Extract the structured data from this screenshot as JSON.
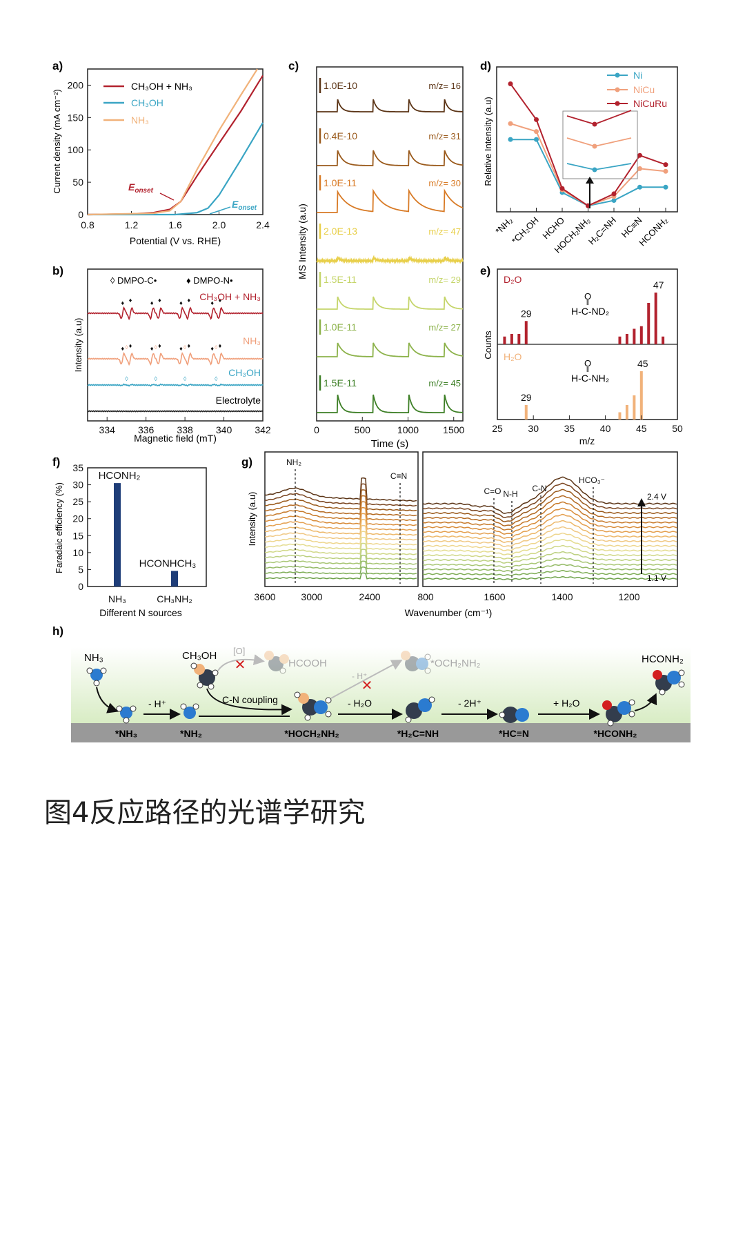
{
  "caption": "图4反应路径的光谱学研究",
  "colors": {
    "red": "#b2222e",
    "cyan": "#3aa5c4",
    "peach": "#f1b27a",
    "brown": "#5b3416",
    "orange": "#d87a25",
    "yellow": "#e8cf4a",
    "lime": "#b8cc55",
    "green": "#6ea23e",
    "dkgreen": "#3d7f26",
    "navy": "#1e3d78",
    "salmon": "#f0a07c"
  },
  "panel_a": {
    "label": "a)",
    "chart_data": {
      "type": "line",
      "xlabel": "Potential (V vs. RHE)",
      "ylabel": "Current density (mA cm⁻²)",
      "xlim": [
        0.8,
        2.4
      ],
      "ylim": [
        0,
        225
      ],
      "xticks": [
        "0.8",
        "1.2",
        "1.6",
        "2.0",
        "2.4"
      ],
      "yticks": [
        "0",
        "50",
        "100",
        "150",
        "200"
      ],
      "legend": [
        "CH₃OH + NH₃",
        "CH₃OH",
        "NH₃"
      ],
      "series": [
        {
          "name": "CH₃OH + NH₃",
          "color": "#b2222e",
          "x": [
            0.8,
            1.2,
            1.4,
            1.55,
            1.65,
            1.8,
            2.0,
            2.2,
            2.4
          ],
          "y": [
            0,
            1,
            3,
            8,
            20,
            60,
            110,
            160,
            215
          ]
        },
        {
          "name": "CH₃OH",
          "color": "#3aa5c4",
          "x": [
            0.8,
            1.6,
            1.8,
            1.9,
            2.0,
            2.2,
            2.4
          ],
          "y": [
            0,
            0,
            3,
            10,
            30,
            85,
            142
          ]
        },
        {
          "name": "NH₃",
          "color": "#f1b27a",
          "x": [
            0.8,
            1.4,
            1.55,
            1.65,
            1.8,
            2.0,
            2.2,
            2.35
          ],
          "y": [
            0,
            2,
            6,
            20,
            70,
            130,
            185,
            225
          ]
        }
      ],
      "annotations": [
        "E",
        "onset",
        "E",
        "onset"
      ]
    }
  },
  "panel_b": {
    "label": "b)",
    "chart_data": {
      "type": "line",
      "xlabel": "Magnetic field (mT)",
      "ylabel": "Intensity (a.u)",
      "xticks": [
        "334",
        "336",
        "338",
        "340",
        "342"
      ],
      "legend": [
        "DMPO-C•",
        "DMPO-N•"
      ],
      "series": [
        {
          "name": "CH₃OH + NH₃",
          "color": "#b2222e"
        },
        {
          "name": "NH₃",
          "color": "#f0a07c"
        },
        {
          "name": "CH₃OH",
          "color": "#3aa5c4"
        },
        {
          "name": "Electrolyte",
          "color": "#222222"
        }
      ]
    }
  },
  "panel_c": {
    "label": "c)",
    "chart_data": {
      "type": "line",
      "xlabel": "Time (s)",
      "ylabel": "MS Intensity (a.u)",
      "xlim": [
        0,
        1600
      ],
      "xticks": [
        "0",
        "500",
        "1000",
        "1500"
      ],
      "series": [
        {
          "scale": "1.0E-10",
          "mz": "m/z= 16",
          "color": "#5b3416"
        },
        {
          "scale": "0.4E-10",
          "mz": "m/z= 31",
          "color": "#9a5a1c"
        },
        {
          "scale": "1.0E-11",
          "mz": "m/z= 30",
          "color": "#d87a25"
        },
        {
          "scale": "2.0E-13",
          "mz": "m/z= 47",
          "color": "#e8cf4a"
        },
        {
          "scale": "1.5E-11",
          "mz": "m/z= 29",
          "color": "#c5d56a"
        },
        {
          "scale": "1.0E-11",
          "mz": "m/z= 27",
          "color": "#8cb24a"
        },
        {
          "scale": "1.5E-11",
          "mz": "m/z= 45",
          "color": "#3d7f26"
        }
      ]
    }
  },
  "panel_d": {
    "label": "d)",
    "chart_data": {
      "type": "line",
      "ylabel": "Relative Intensity (a.u)",
      "categories": [
        "*NH₂",
        "*CH₂OH",
        "HCHO",
        "HOCH₂NH₂",
        "H₂C=NH",
        "HC≡N",
        "HCONH₂"
      ],
      "legend": [
        "Ni",
        "NiCu",
        "NiCuRu"
      ],
      "series": [
        {
          "name": "Ni",
          "color": "#3aa5c4",
          "values": [
            0.52,
            0.52,
            0.12,
            0.02,
            0.06,
            0.16,
            0.16
          ]
        },
        {
          "name": "NiCu",
          "color": "#f0a07c",
          "values": [
            0.64,
            0.58,
            0.14,
            0.02,
            0.09,
            0.3,
            0.28
          ]
        },
        {
          "name": "NiCuRu",
          "color": "#b2222e",
          "values": [
            0.94,
            0.67,
            0.15,
            0.02,
            0.11,
            0.4,
            0.33
          ]
        }
      ]
    }
  },
  "panel_e": {
    "label": "e)",
    "chart_data": {
      "type": "bar",
      "xlabel": "m/z",
      "ylabel": "Counts",
      "xlim": [
        25,
        50
      ],
      "xticks": [
        "25",
        "30",
        "35",
        "40",
        "45",
        "50"
      ],
      "series": [
        {
          "name": "D₂O",
          "color": "#b2222e",
          "x": [
            26,
            27,
            28,
            29,
            42,
            43,
            44,
            45,
            46,
            47,
            48
          ],
          "values": [
            0.15,
            0.2,
            0.2,
            0.45,
            0.15,
            0.2,
            0.3,
            0.35,
            0.8,
            1.0,
            0.15
          ],
          "peak_labels": [
            "29",
            "47"
          ]
        },
        {
          "name": "H₂O",
          "color": "#f1b27a",
          "x": [
            29,
            42,
            43,
            44,
            45
          ],
          "values": [
            0.3,
            0.15,
            0.3,
            0.5,
            1.0
          ],
          "peak_labels": [
            "29",
            "45"
          ]
        }
      ],
      "formula_d": [
        "O",
        "H-C-ND₂"
      ],
      "formula_h": [
        "O",
        "H-C-NH₂"
      ]
    }
  },
  "panel_f": {
    "label": "f)",
    "chart_data": {
      "type": "bar",
      "xlabel": "Different N sources",
      "ylabel": "Faradaic efficiency (%)",
      "ylim": [
        0,
        35
      ],
      "yticks": [
        "0",
        "5",
        "10",
        "15",
        "20",
        "25",
        "30",
        "35"
      ],
      "categories": [
        "NH₃",
        "CH₃NH₂"
      ],
      "values": [
        30.5,
        4.6
      ],
      "bar_labels": [
        "HCONH₂",
        "HCONHCH₃"
      ],
      "color": "#1e3d78"
    }
  },
  "panel_g": {
    "label": "g)",
    "chart_data": {
      "type": "line",
      "xlabel": "Wavenumber (cm⁻¹)",
      "ylabel": "Intensity (a.u)",
      "xticks_left": [
        "3600",
        "3000",
        "2400"
      ],
      "xticks_right": [
        "800",
        "1600",
        "1400",
        "1200"
      ],
      "peak_labels": [
        "NH₂",
        "C≡N",
        "C=O",
        "N-H",
        "C-N",
        "HCO₃⁻"
      ],
      "voltage_labels": [
        "2.4 V",
        "1.1 V"
      ]
    }
  },
  "panel_h": {
    "label": "h)",
    "species": [
      "NH₃",
      "CH₃OH",
      "HCOOH",
      "*OCH₂NH₂",
      "HCONH₂"
    ],
    "steps": [
      "- H⁺",
      "C-N coupling",
      "- H₂O",
      "- 2H⁺",
      "+ H₂O",
      "[O]",
      "- H⁺"
    ],
    "intermediates": [
      "*NH₃",
      "*NH₂",
      "*HOCH₂NH₂",
      "*H₂C=NH",
      "*HC≡N",
      "*HCONH₂"
    ]
  }
}
